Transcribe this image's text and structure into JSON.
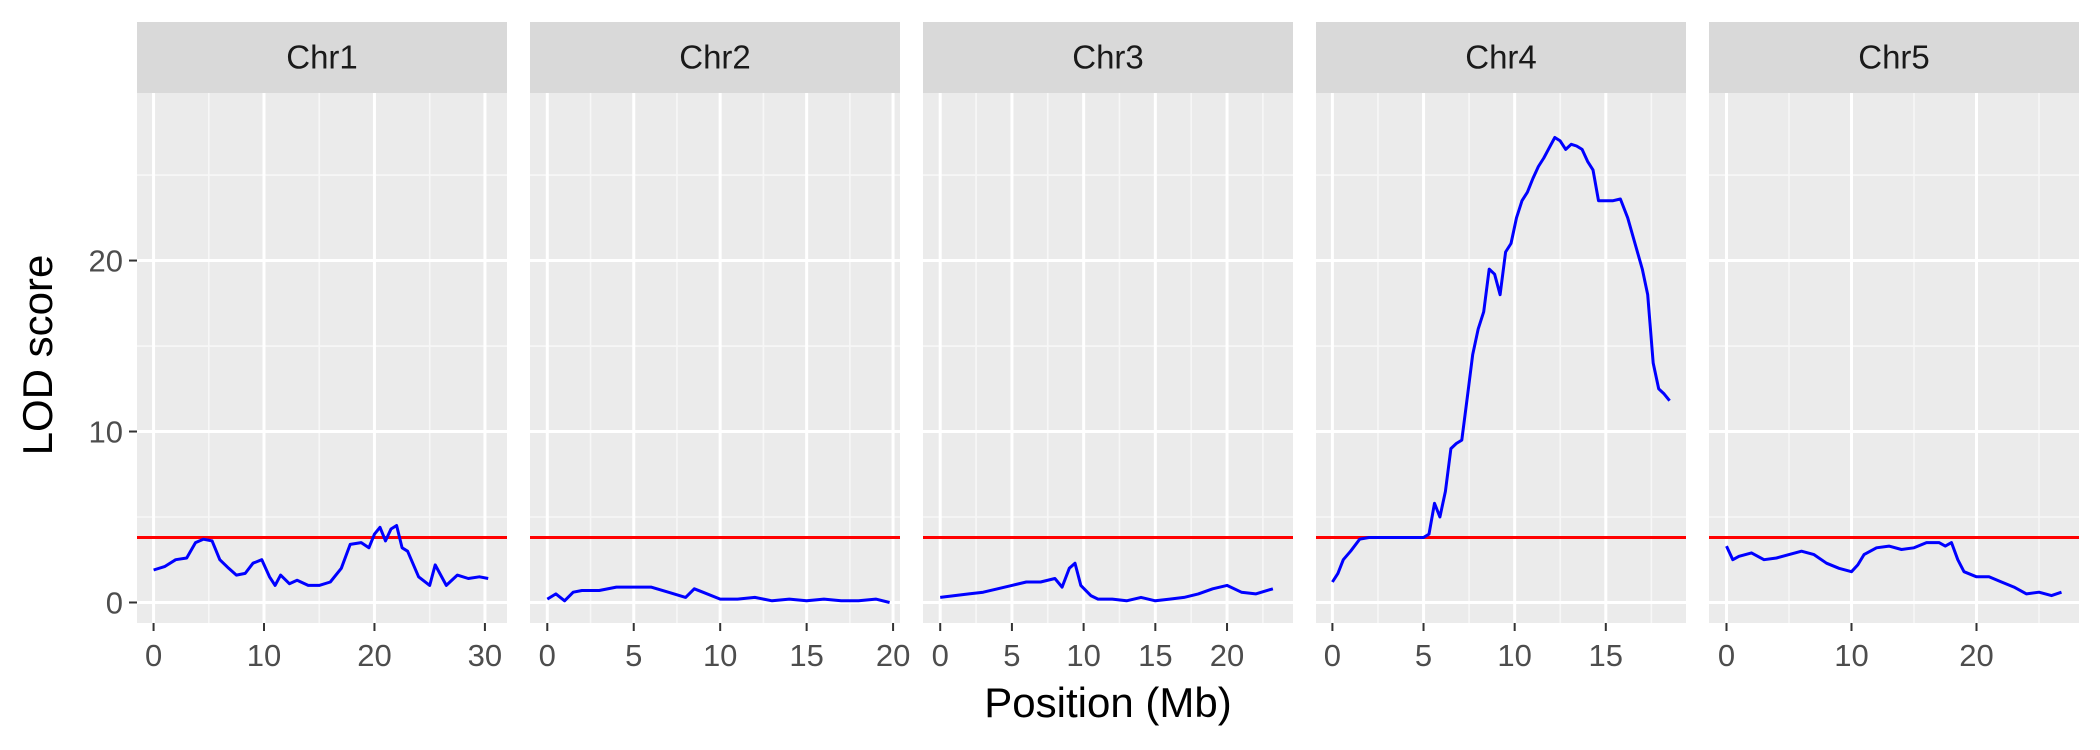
{
  "chart_data": {
    "type": "line",
    "title": "",
    "xlabel": "Position (Mb)",
    "ylabel": "LOD score",
    "ylim": [
      -1.2,
      29.8
    ],
    "yticks": [
      0,
      10,
      20
    ],
    "grid": true,
    "legend": "none",
    "threshold": {
      "value": 3.8,
      "color": "#ff0000"
    },
    "line_color": "#0000ff",
    "panels": [
      {
        "name": "Chr1",
        "xlim": [
          -1.5,
          32
        ],
        "xticks": [
          0,
          10,
          20,
          30
        ],
        "x": [
          0,
          1,
          2,
          3,
          3.8,
          4.5,
          5.3,
          6,
          6.8,
          7.5,
          8.3,
          9,
          9.8,
          10.5,
          11,
          11.5,
          12.3,
          13,
          14,
          15,
          16,
          17,
          17.8,
          18.8,
          19.5,
          20,
          20.5,
          21,
          21.5,
          22,
          22.5,
          23,
          24,
          25,
          25.5,
          26.5,
          27.5,
          28.5,
          29.5,
          30.3
        ],
        "y": [
          1.9,
          2.1,
          2.5,
          2.6,
          3.5,
          3.7,
          3.6,
          2.5,
          2.0,
          1.6,
          1.7,
          2.3,
          2.5,
          1.5,
          1.0,
          1.6,
          1.1,
          1.3,
          1.0,
          1.0,
          1.2,
          2.0,
          3.4,
          3.5,
          3.2,
          4.0,
          4.4,
          3.6,
          4.3,
          4.5,
          3.2,
          3.0,
          1.5,
          1.0,
          2.2,
          1.0,
          1.6,
          1.4,
          1.5,
          1.4
        ]
      },
      {
        "name": "Chr2",
        "xlim": [
          -1,
          20.4
        ],
        "xticks": [
          0,
          5,
          10,
          15,
          20
        ],
        "x": [
          0,
          0.5,
          1,
          1.5,
          2,
          3,
          4,
          5,
          6,
          7,
          8,
          8.5,
          9,
          10,
          11,
          12,
          13,
          14,
          15,
          16,
          17,
          18,
          19,
          19.8
        ],
        "y": [
          0.2,
          0.5,
          0.1,
          0.6,
          0.7,
          0.7,
          0.9,
          0.9,
          0.9,
          0.6,
          0.3,
          0.8,
          0.6,
          0.2,
          0.2,
          0.3,
          0.1,
          0.2,
          0.1,
          0.2,
          0.1,
          0.1,
          0.2,
          0.0
        ]
      },
      {
        "name": "Chr3",
        "xlim": [
          -1.2,
          24.6
        ],
        "xticks": [
          0,
          5,
          10,
          15,
          20
        ],
        "x": [
          0,
          1,
          2,
          3,
          4,
          5,
          6,
          7,
          8,
          8.5,
          9,
          9.4,
          9.8,
          10.5,
          11,
          12,
          13,
          14,
          15,
          16,
          17,
          18,
          19,
          20,
          21,
          22,
          23.2
        ],
        "y": [
          0.3,
          0.4,
          0.5,
          0.6,
          0.8,
          1.0,
          1.2,
          1.2,
          1.4,
          0.9,
          2.0,
          2.3,
          1.0,
          0.4,
          0.2,
          0.2,
          0.1,
          0.3,
          0.1,
          0.2,
          0.3,
          0.5,
          0.8,
          1.0,
          0.6,
          0.5,
          0.8
        ]
      },
      {
        "name": "Chr4",
        "xlim": [
          -0.9,
          19.4
        ],
        "xticks": [
          0,
          5,
          10,
          15
        ],
        "x": [
          0,
          0.3,
          0.6,
          1,
          1.5,
          2,
          3,
          4,
          5,
          5.3,
          5.6,
          5.9,
          6.2,
          6.5,
          6.8,
          7.1,
          7.4,
          7.7,
          8,
          8.3,
          8.6,
          8.9,
          9.2,
          9.5,
          9.8,
          10.1,
          10.4,
          10.7,
          11,
          11.3,
          11.6,
          11.9,
          12.2,
          12.5,
          12.8,
          13.1,
          13.4,
          13.7,
          14,
          14.3,
          14.6,
          15,
          15.4,
          15.8,
          16.2,
          16.6,
          17,
          17.3,
          17.6,
          17.9,
          18.2,
          18.5
        ],
        "y": [
          1.2,
          1.7,
          2.5,
          3.0,
          3.7,
          3.8,
          3.8,
          3.8,
          3.8,
          4.0,
          5.8,
          5.0,
          6.5,
          9.0,
          9.3,
          9.5,
          12.0,
          14.5,
          16.0,
          17.0,
          19.5,
          19.2,
          18.0,
          20.5,
          21.0,
          22.5,
          23.5,
          24.0,
          24.8,
          25.5,
          26.0,
          26.6,
          27.2,
          27.0,
          26.5,
          26.8,
          26.7,
          26.5,
          25.8,
          25.3,
          23.5,
          23.5,
          23.5,
          23.6,
          22.5,
          21.0,
          19.5,
          18.0,
          14.0,
          12.5,
          12.2,
          11.8
        ]
      },
      {
        "name": "Chr5",
        "xlim": [
          -1.4,
          28.2
        ],
        "xticks": [
          0,
          10,
          20
        ],
        "x": [
          0,
          0.5,
          1,
          2,
          3,
          4,
          5,
          6,
          7,
          8,
          9,
          10,
          10.5,
          11,
          12,
          13,
          14,
          15,
          16,
          17,
          17.5,
          18,
          18.5,
          19,
          20,
          21,
          22,
          23,
          24,
          25,
          26,
          26.8
        ],
        "y": [
          3.3,
          2.5,
          2.7,
          2.9,
          2.5,
          2.6,
          2.8,
          3.0,
          2.8,
          2.3,
          2.0,
          1.8,
          2.2,
          2.8,
          3.2,
          3.3,
          3.1,
          3.2,
          3.5,
          3.5,
          3.3,
          3.5,
          2.5,
          1.8,
          1.5,
          1.5,
          1.2,
          0.9,
          0.5,
          0.6,
          0.4,
          0.6
        ]
      }
    ]
  }
}
